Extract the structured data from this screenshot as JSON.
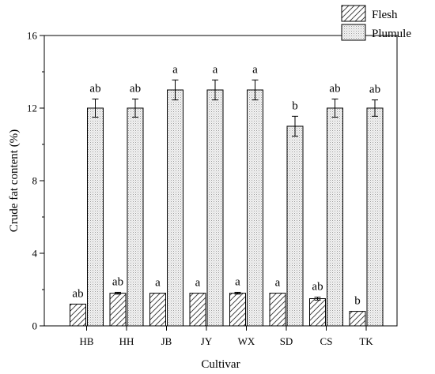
{
  "chart_data": {
    "type": "bar",
    "xlabel": "Cultivar",
    "ylabel": "Crude fat content (%)",
    "ylim": [
      0,
      16
    ],
    "yticks": [
      0,
      4,
      8,
      12,
      16
    ],
    "grid": false,
    "legend_position": "top-right",
    "categories": [
      "HB",
      "HH",
      "JB",
      "JY",
      "WX",
      "SD",
      "CS",
      "TK"
    ],
    "series": [
      {
        "name": "Flesh",
        "pattern": "diagonal-hatch",
        "values": [
          1.2,
          1.8,
          1.8,
          1.8,
          1.8,
          1.8,
          1.5,
          0.8
        ],
        "errors": [
          0,
          0.05,
          0,
          0,
          0.05,
          0,
          0.08,
          0
        ],
        "sig_labels": [
          "ab",
          "ab",
          "a",
          "a",
          "a",
          "a",
          "ab",
          "b"
        ]
      },
      {
        "name": "Plumule",
        "pattern": "dots",
        "values": [
          12.0,
          12.0,
          13.0,
          13.0,
          13.0,
          11.0,
          12.0,
          12.0
        ],
        "errors": [
          0.5,
          0.5,
          0.55,
          0.55,
          0.55,
          0.55,
          0.5,
          0.45
        ],
        "sig_labels": [
          "ab",
          "ab",
          "a",
          "a",
          "a",
          "b",
          "ab",
          "ab"
        ]
      }
    ]
  }
}
